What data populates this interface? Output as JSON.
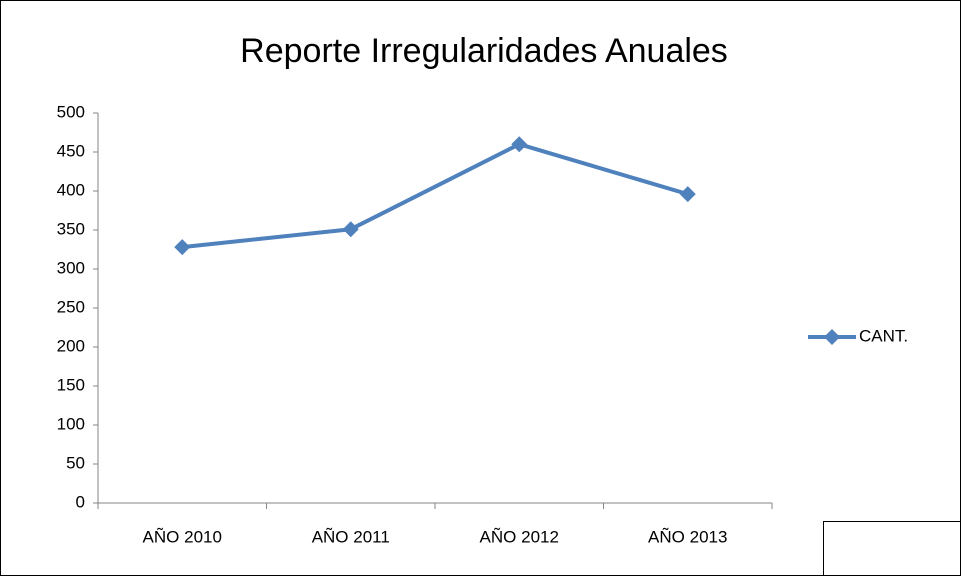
{
  "chart_data": {
    "type": "line",
    "title": "Reporte Irregularidades Anuales",
    "categories": [
      "AÑO 2010",
      "AÑO 2011",
      "AÑO 2012",
      "AÑO 2013"
    ],
    "series": [
      {
        "name": "CANT.",
        "color": "#4f81bd",
        "values": [
          328,
          351,
          460,
          396
        ]
      }
    ],
    "ylim": [
      0,
      500
    ],
    "yticks": [
      0,
      50,
      100,
      150,
      200,
      250,
      300,
      350,
      400,
      450,
      500
    ],
    "grid": false,
    "legend": "right"
  }
}
